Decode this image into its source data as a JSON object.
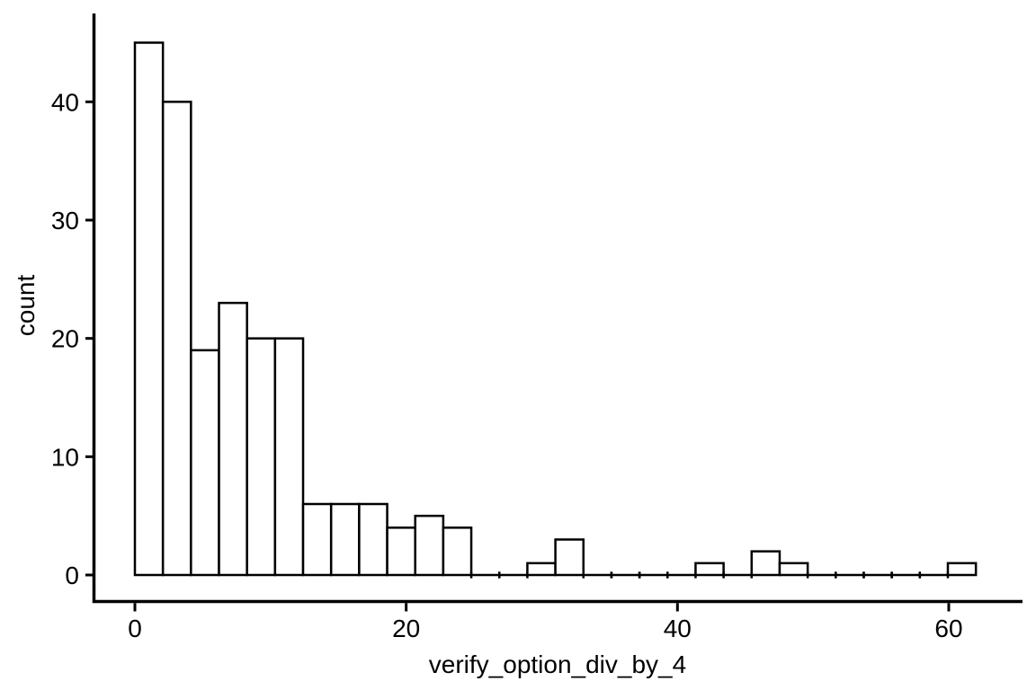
{
  "figure": {
    "background": "#ffffff",
    "bar_fill": "#ffffff",
    "bar_stroke": "#000000",
    "axis_color": "#000000",
    "text_color": "#000000"
  },
  "chart_data": {
    "type": "bar",
    "subtype": "histogram",
    "title": "",
    "xlabel": "verify_option_div_by_4",
    "ylabel": "count",
    "bin_start": 0,
    "bin_width": 2.0667,
    "bin_counts": [
      45,
      40,
      19,
      23,
      20,
      20,
      6,
      6,
      6,
      4,
      5,
      4,
      0,
      0,
      1,
      3,
      0,
      0,
      0,
      0,
      1,
      0,
      2,
      1,
      0,
      0,
      0,
      0,
      0,
      1
    ],
    "x_ticks": [
      0,
      20,
      40,
      60
    ],
    "y_ticks": [
      0,
      10,
      20,
      30,
      40
    ],
    "xlim": [
      -3.1,
      65.4
    ],
    "ylim": [
      0,
      47.5
    ],
    "grid": false,
    "legend": false
  }
}
